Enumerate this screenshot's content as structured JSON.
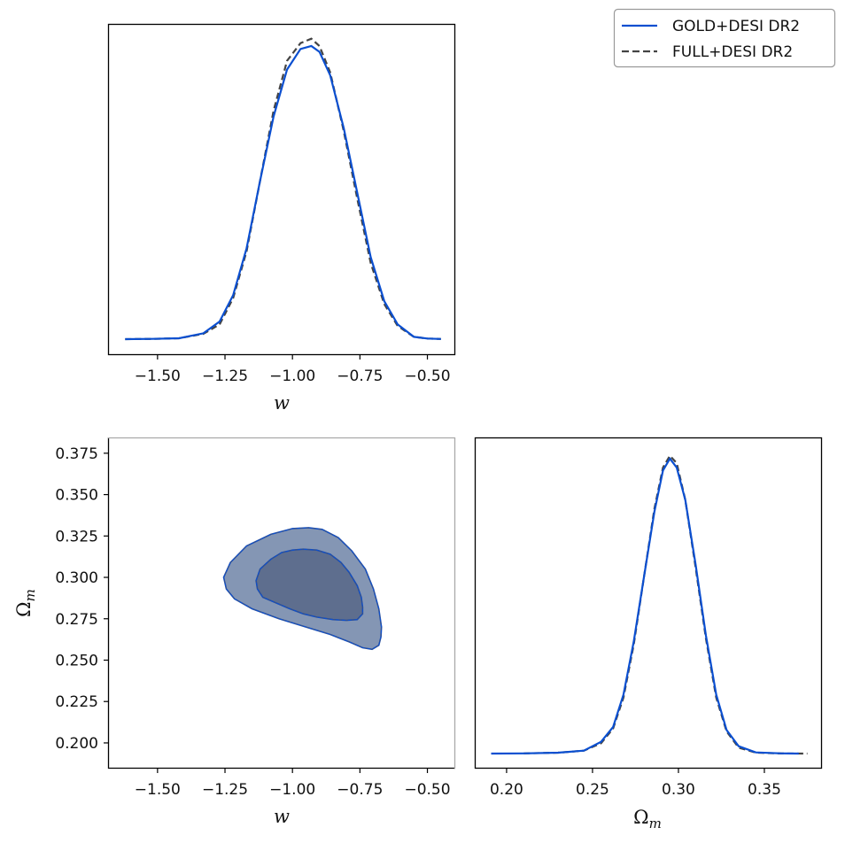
{
  "legend": {
    "entries": [
      {
        "label": "GOLD+DESI DR2",
        "color": "#0b4fd0",
        "dash": "solid"
      },
      {
        "label": "FULL+DESI DR2",
        "color": "#444444",
        "dash": "dashed"
      }
    ],
    "placement": "top-right"
  },
  "chart_data": [
    {
      "id": "w_marginal",
      "type": "line",
      "xlabel": "w",
      "ylabel": "",
      "xlim": [
        -1.68,
        -0.4
      ],
      "ylim": [
        0,
        1.05
      ],
      "xticks": [
        -1.5,
        -1.25,
        -1.0,
        -0.75,
        -0.5
      ],
      "xtick_labels": [
        "−1.50",
        "−1.25",
        "−1.00",
        "−0.75",
        "−0.50"
      ],
      "series": [
        {
          "name": "GOLD+DESI DR2",
          "x": [
            -1.62,
            -1.52,
            -1.42,
            -1.33,
            -1.27,
            -1.22,
            -1.17,
            -1.12,
            -1.07,
            -1.02,
            -0.97,
            -0.93,
            -0.9,
            -0.86,
            -0.81,
            -0.76,
            -0.71,
            -0.66,
            -0.61,
            -0.55,
            -0.5,
            -0.45
          ],
          "y": [
            0,
            0.0008,
            0.003,
            0.02,
            0.06,
            0.15,
            0.31,
            0.54,
            0.76,
            0.92,
            0.99,
            1.0,
            0.98,
            0.9,
            0.72,
            0.5,
            0.28,
            0.13,
            0.05,
            0.008,
            0.002,
            0.0005
          ]
        },
        {
          "name": "FULL+DESI DR2",
          "x": [
            -1.62,
            -1.52,
            -1.42,
            -1.33,
            -1.27,
            -1.22,
            -1.17,
            -1.12,
            -1.07,
            -1.02,
            -0.97,
            -0.93,
            -0.9,
            -0.86,
            -0.81,
            -0.76,
            -0.71,
            -0.66,
            -0.61,
            -0.55,
            -0.5,
            -0.45
          ],
          "y": [
            0,
            0.0008,
            0.003,
            0.018,
            0.05,
            0.14,
            0.3,
            0.54,
            0.78,
            0.95,
            1.01,
            1.025,
            1.0,
            0.91,
            0.71,
            0.48,
            0.26,
            0.12,
            0.045,
            0.008,
            0.002,
            0.0005
          ]
        }
      ]
    },
    {
      "id": "w_om_contours",
      "type": "scatter",
      "xlabel": "w",
      "ylabel": "Ω_m",
      "xlim": [
        -1.68,
        -0.4
      ],
      "ylim": [
        0.185,
        0.384
      ],
      "xticks": [
        -1.5,
        -1.25,
        -1.0,
        -0.75,
        -0.5
      ],
      "xtick_labels": [
        "−1.50",
        "−1.25",
        "−1.00",
        "−0.75",
        "−0.50"
      ],
      "yticks": [
        0.2,
        0.225,
        0.25,
        0.275,
        0.3,
        0.325,
        0.35,
        0.375
      ],
      "ytick_labels": [
        "0.200",
        "0.225",
        "0.250",
        "0.275",
        "0.300",
        "0.325",
        "0.350",
        "0.375"
      ],
      "contours": {
        "outer_95": {
          "fill": "#8496b4",
          "x": [
            -1.255,
            -1.23,
            -1.17,
            -1.08,
            -1.0,
            -0.94,
            -0.89,
            -0.83,
            -0.78,
            -0.73,
            -0.7,
            -0.68,
            -0.67,
            -0.672,
            -0.68,
            -0.705,
            -0.74,
            -0.79,
            -0.86,
            -0.95,
            -1.05,
            -1.15,
            -1.215,
            -1.245
          ],
          "y": [
            0.3,
            0.309,
            0.319,
            0.326,
            0.3295,
            0.33,
            0.329,
            0.324,
            0.316,
            0.305,
            0.293,
            0.281,
            0.27,
            0.264,
            0.259,
            0.2565,
            0.2575,
            0.261,
            0.2655,
            0.27,
            0.275,
            0.281,
            0.287,
            0.293
          ]
        },
        "inner_68": {
          "fill": "#5e6e8e",
          "x": [
            -1.135,
            -1.12,
            -1.08,
            -1.04,
            -1.0,
            -0.96,
            -0.91,
            -0.86,
            -0.82,
            -0.79,
            -0.76,
            -0.745,
            -0.74,
            -0.74,
            -0.76,
            -0.8,
            -0.85,
            -0.91,
            -0.96,
            -1.01,
            -1.06,
            -1.11,
            -1.13
          ],
          "y": [
            0.298,
            0.305,
            0.311,
            0.315,
            0.3165,
            0.317,
            0.3165,
            0.314,
            0.309,
            0.303,
            0.295,
            0.288,
            0.282,
            0.278,
            0.2745,
            0.274,
            0.2745,
            0.276,
            0.278,
            0.281,
            0.2845,
            0.288,
            0.293
          ]
        }
      }
    },
    {
      "id": "om_marginal",
      "type": "line",
      "xlabel": "Ω_m",
      "ylabel": "",
      "xlim": [
        0.182,
        0.383
      ],
      "ylim": [
        0,
        1.05
      ],
      "xticks": [
        0.2,
        0.25,
        0.3,
        0.35
      ],
      "xtick_labels": [
        "0.20",
        "0.25",
        "0.30",
        "0.35"
      ],
      "series": [
        {
          "name": "GOLD+DESI DR2",
          "x": [
            0.191,
            0.21,
            0.23,
            0.245,
            0.255,
            0.262,
            0.268,
            0.274,
            0.28,
            0.286,
            0.291,
            0.295,
            0.299,
            0.304,
            0.31,
            0.316,
            0.322,
            0.328,
            0.335,
            0.345,
            0.36,
            0.37
          ],
          "y": [
            0,
            0.0005,
            0.003,
            0.01,
            0.04,
            0.09,
            0.2,
            0.38,
            0.6,
            0.82,
            0.96,
            1.0,
            0.97,
            0.86,
            0.64,
            0.4,
            0.2,
            0.08,
            0.025,
            0.004,
            0.0005,
            0
          ]
        },
        {
          "name": "FULL+DESI DR2",
          "x": [
            0.21,
            0.23,
            0.245,
            0.255,
            0.262,
            0.268,
            0.274,
            0.28,
            0.286,
            0.291,
            0.295,
            0.299,
            0.304,
            0.31,
            0.316,
            0.322,
            0.328,
            0.335,
            0.345,
            0.36,
            0.375
          ],
          "y": [
            0.0005,
            0.003,
            0.01,
            0.035,
            0.085,
            0.19,
            0.37,
            0.6,
            0.83,
            0.97,
            1.01,
            0.985,
            0.86,
            0.63,
            0.39,
            0.19,
            0.075,
            0.02,
            0.003,
            0.0004,
            0
          ]
        }
      ]
    }
  ]
}
